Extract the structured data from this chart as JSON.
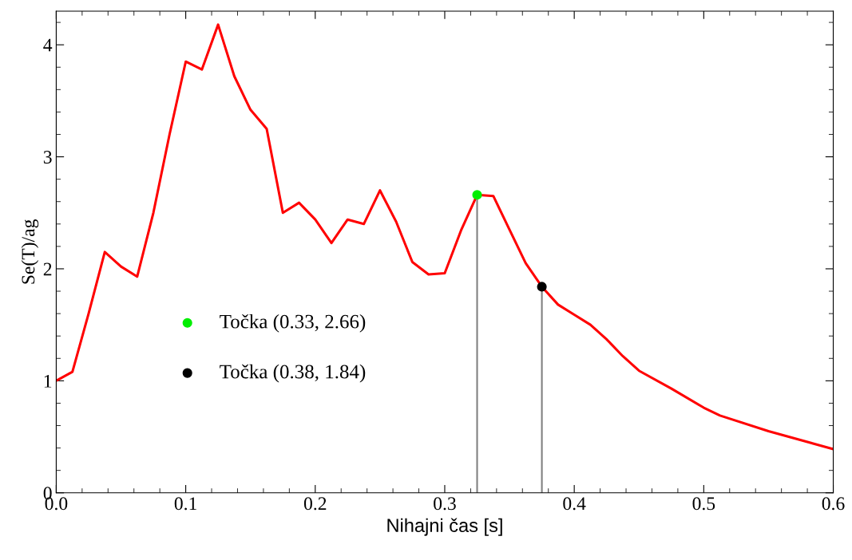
{
  "chart_data": {
    "type": "line",
    "xlabel": "Nihajni čas [s]",
    "ylabel": "Se(T)/ag",
    "xlim": [
      0,
      0.6
    ],
    "xticks": [
      {
        "value": 0,
        "label": "0.0"
      },
      0.1,
      0.2,
      0.3,
      0.4,
      0.5,
      0.6
    ],
    "ylim": [
      0,
      4.3
    ],
    "yticks": [
      0,
      1,
      2,
      3,
      4
    ],
    "grid": false,
    "legend": "center left",
    "marker": "none",
    "line_style": "solid",
    "series": [
      {
        "color": "#ff0000",
        "x": [
          0,
          0.0125,
          0.025,
          0.0375,
          0.05,
          0.0625,
          0.075,
          0.0875,
          0.1,
          0.1125,
          0.125,
          0.1375,
          0.15,
          0.1625,
          0.175,
          0.1875,
          0.2,
          0.2125,
          0.225,
          0.2375,
          0.25,
          0.2625,
          0.275,
          0.2875,
          0.3,
          0.3125,
          0.325,
          0.3375,
          0.35,
          0.3625,
          0.375,
          0.3875,
          0.4,
          0.4125,
          0.425,
          0.4375,
          0.45,
          0.475,
          0.5,
          0.5125,
          0.55,
          0.6
        ],
        "values": [
          1.0,
          1.08,
          1.6,
          2.15,
          2.02,
          1.93,
          2.5,
          3.2,
          3.85,
          3.78,
          4.18,
          3.72,
          3.42,
          3.25,
          2.5,
          2.59,
          2.44,
          2.23,
          2.44,
          2.4,
          2.7,
          2.42,
          2.06,
          1.95,
          1.96,
          2.34,
          2.66,
          2.65,
          2.35,
          2.05,
          1.84,
          1.68,
          1.59,
          1.5,
          1.37,
          1.22,
          1.09,
          0.93,
          0.76,
          0.69,
          0.55,
          0.39
        ]
      },
      {
        "type": "lollipop",
        "marker": "circle",
        "name": "Točka (0.33, 2.66)",
        "color": "#00ee00",
        "x": [
          0.325
        ],
        "values": [
          2.66
        ]
      },
      {
        "type": "lollipop",
        "marker": "circle",
        "name": "Točka (0.38, 1.84)",
        "color": "#000000",
        "x": [
          0.375
        ],
        "values": [
          1.84
        ]
      }
    ]
  }
}
